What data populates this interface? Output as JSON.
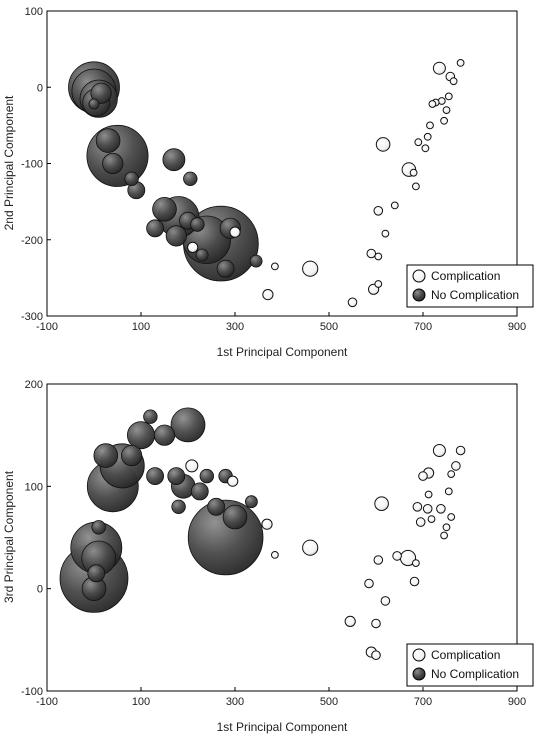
{
  "colors": {
    "complication": "#ffffff",
    "no_complication": "#3a3a3a",
    "frame": "#000000"
  },
  "chart_data": [
    {
      "type": "scatter",
      "xlabel": "1st Principal Component",
      "ylabel": "2nd Principal Component",
      "xlim": [
        -100,
        900
      ],
      "ylim": [
        -300,
        100
      ],
      "xticks": [
        -100,
        100,
        300,
        500,
        700,
        900
      ],
      "yticks": [
        -300,
        -200,
        -100,
        0,
        100
      ],
      "legend_position": "bottom-right",
      "series": [
        {
          "name": "Complication",
          "points": [
            {
              "x": 735,
              "y": 25,
              "size": 7
            },
            {
              "x": 758,
              "y": 14,
              "size": 5
            },
            {
              "x": 765,
              "y": 8,
              "size": 4
            },
            {
              "x": 780,
              "y": 32,
              "size": 4
            },
            {
              "x": 740,
              "y": -18,
              "size": 4
            },
            {
              "x": 727,
              "y": -20,
              "size": 4
            },
            {
              "x": 750,
              "y": -30,
              "size": 4
            },
            {
              "x": 720,
              "y": -22,
              "size": 4
            },
            {
              "x": 755,
              "y": -12,
              "size": 4
            },
            {
              "x": 715,
              "y": -50,
              "size": 4
            },
            {
              "x": 745,
              "y": -44,
              "size": 4
            },
            {
              "x": 710,
              "y": -65,
              "size": 4
            },
            {
              "x": 690,
              "y": -72,
              "size": 4
            },
            {
              "x": 705,
              "y": -80,
              "size": 4
            },
            {
              "x": 615,
              "y": -75,
              "size": 8
            },
            {
              "x": 670,
              "y": -108,
              "size": 8
            },
            {
              "x": 680,
              "y": -112,
              "size": 4
            },
            {
              "x": 685,
              "y": -130,
              "size": 4
            },
            {
              "x": 640,
              "y": -155,
              "size": 4
            },
            {
              "x": 605,
              "y": -162,
              "size": 5
            },
            {
              "x": 620,
              "y": -192,
              "size": 4
            },
            {
              "x": 590,
              "y": -218,
              "size": 5
            },
            {
              "x": 605,
              "y": -222,
              "size": 4
            },
            {
              "x": 605,
              "y": -258,
              "size": 4
            },
            {
              "x": 595,
              "y": -265,
              "size": 6
            },
            {
              "x": 550,
              "y": -282,
              "size": 5
            },
            {
              "x": 460,
              "y": -238,
              "size": 9
            },
            {
              "x": 370,
              "y": -272,
              "size": 6
            },
            {
              "x": 385,
              "y": -235,
              "size": 4
            },
            {
              "x": 300,
              "y": -190,
              "size": 6
            },
            {
              "x": 210,
              "y": -210,
              "size": 6
            }
          ]
        },
        {
          "name": "No Complication",
          "points": [
            {
              "x": 0,
              "y": 0,
              "size": 30
            },
            {
              "x": 0,
              "y": -5,
              "size": 26
            },
            {
              "x": 10,
              "y": -15,
              "size": 22
            },
            {
              "x": 5,
              "y": -20,
              "size": 16
            },
            {
              "x": 15,
              "y": -8,
              "size": 12
            },
            {
              "x": 0,
              "y": -22,
              "size": 6
            },
            {
              "x": 50,
              "y": -90,
              "size": 36
            },
            {
              "x": 30,
              "y": -70,
              "size": 14
            },
            {
              "x": 40,
              "y": -100,
              "size": 12
            },
            {
              "x": 80,
              "y": -120,
              "size": 8
            },
            {
              "x": 90,
              "y": -135,
              "size": 10
            },
            {
              "x": 170,
              "y": -95,
              "size": 13
            },
            {
              "x": 270,
              "y": -205,
              "size": 44
            },
            {
              "x": 240,
              "y": -200,
              "size": 28
            },
            {
              "x": 180,
              "y": -170,
              "size": 24
            },
            {
              "x": 150,
              "y": -160,
              "size": 14
            },
            {
              "x": 200,
              "y": -175,
              "size": 10
            },
            {
              "x": 220,
              "y": -180,
              "size": 8
            },
            {
              "x": 130,
              "y": -185,
              "size": 10
            },
            {
              "x": 175,
              "y": -195,
              "size": 12
            },
            {
              "x": 205,
              "y": -120,
              "size": 8
            },
            {
              "x": 280,
              "y": -238,
              "size": 10
            },
            {
              "x": 290,
              "y": -185,
              "size": 12
            },
            {
              "x": 345,
              "y": -228,
              "size": 7
            },
            {
              "x": 230,
              "y": -220,
              "size": 7
            }
          ]
        }
      ]
    },
    {
      "type": "scatter",
      "xlabel": "1st Principal Component",
      "ylabel": "3rd Principal Component",
      "xlim": [
        -100,
        900
      ],
      "ylim": [
        -100,
        200
      ],
      "xticks": [
        -100,
        100,
        300,
        500,
        700,
        900
      ],
      "yticks": [
        -100,
        0,
        100,
        200
      ],
      "legend_position": "bottom-right",
      "series": [
        {
          "name": "Complication",
          "points": [
            {
              "x": 735,
              "y": 135,
              "size": 7
            },
            {
              "x": 780,
              "y": 135,
              "size": 5
            },
            {
              "x": 770,
              "y": 120,
              "size": 5
            },
            {
              "x": 760,
              "y": 112,
              "size": 4
            },
            {
              "x": 712,
              "y": 113,
              "size": 6
            },
            {
              "x": 700,
              "y": 110,
              "size": 5
            },
            {
              "x": 755,
              "y": 95,
              "size": 4
            },
            {
              "x": 712,
              "y": 92,
              "size": 4
            },
            {
              "x": 688,
              "y": 80,
              "size": 5
            },
            {
              "x": 710,
              "y": 78,
              "size": 5
            },
            {
              "x": 738,
              "y": 78,
              "size": 5
            },
            {
              "x": 760,
              "y": 70,
              "size": 4
            },
            {
              "x": 718,
              "y": 68,
              "size": 4
            },
            {
              "x": 695,
              "y": 65,
              "size": 5
            },
            {
              "x": 750,
              "y": 60,
              "size": 4
            },
            {
              "x": 745,
              "y": 52,
              "size": 4
            },
            {
              "x": 612,
              "y": 83,
              "size": 8
            },
            {
              "x": 668,
              "y": 30,
              "size": 9
            },
            {
              "x": 685,
              "y": 25,
              "size": 4
            },
            {
              "x": 645,
              "y": 32,
              "size": 5
            },
            {
              "x": 605,
              "y": 28,
              "size": 5
            },
            {
              "x": 585,
              "y": 5,
              "size": 5
            },
            {
              "x": 682,
              "y": 7,
              "size": 5
            },
            {
              "x": 620,
              "y": -12,
              "size": 5
            },
            {
              "x": 545,
              "y": -32,
              "size": 6
            },
            {
              "x": 600,
              "y": -34,
              "size": 5
            },
            {
              "x": 590,
              "y": -62,
              "size": 6
            },
            {
              "x": 600,
              "y": -65,
              "size": 5
            },
            {
              "x": 460,
              "y": 40,
              "size": 9
            },
            {
              "x": 368,
              "y": 63,
              "size": 6
            },
            {
              "x": 385,
              "y": 33,
              "size": 4
            },
            {
              "x": 208,
              "y": 120,
              "size": 7
            },
            {
              "x": 295,
              "y": 105,
              "size": 6
            }
          ]
        },
        {
          "name": "No Complication",
          "points": [
            {
              "x": 0,
              "y": 10,
              "size": 40
            },
            {
              "x": 5,
              "y": 40,
              "size": 30
            },
            {
              "x": 10,
              "y": 30,
              "size": 20
            },
            {
              "x": 0,
              "y": 0,
              "size": 14
            },
            {
              "x": 5,
              "y": 15,
              "size": 10
            },
            {
              "x": 10,
              "y": 60,
              "size": 8
            },
            {
              "x": 40,
              "y": 100,
              "size": 30
            },
            {
              "x": 60,
              "y": 120,
              "size": 26
            },
            {
              "x": 25,
              "y": 130,
              "size": 14
            },
            {
              "x": 80,
              "y": 130,
              "size": 12
            },
            {
              "x": 100,
              "y": 150,
              "size": 16
            },
            {
              "x": 120,
              "y": 168,
              "size": 8
            },
            {
              "x": 150,
              "y": 150,
              "size": 12
            },
            {
              "x": 130,
              "y": 110,
              "size": 10
            },
            {
              "x": 175,
              "y": 110,
              "size": 10
            },
            {
              "x": 200,
              "y": 160,
              "size": 20
            },
            {
              "x": 190,
              "y": 100,
              "size": 14
            },
            {
              "x": 225,
              "y": 95,
              "size": 10
            },
            {
              "x": 180,
              "y": 80,
              "size": 8
            },
            {
              "x": 260,
              "y": 80,
              "size": 10
            },
            {
              "x": 280,
              "y": 50,
              "size": 44
            },
            {
              "x": 300,
              "y": 70,
              "size": 14
            },
            {
              "x": 280,
              "y": 110,
              "size": 8
            },
            {
              "x": 335,
              "y": 85,
              "size": 7
            },
            {
              "x": 240,
              "y": 110,
              "size": 8
            }
          ]
        }
      ]
    }
  ]
}
